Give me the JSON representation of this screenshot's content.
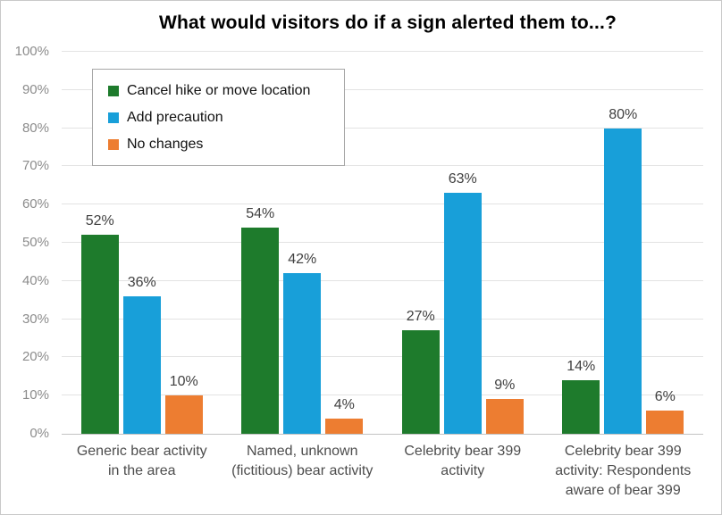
{
  "chart_data": {
    "type": "bar",
    "title": "What would visitors do if a sign alerted them to...?",
    "categories": [
      "Generic bear activity\nin the area",
      "Named, unknown\n(fictitious) bear activity",
      "Celebrity bear 399\nactivity",
      "Celebrity bear 399\nactivity: Respondents\naware of bear 399"
    ],
    "series": [
      {
        "name": "Cancel hike or move location",
        "color": "#1e7b2c",
        "values": [
          52,
          54,
          27,
          14
        ],
        "labels": [
          "52%",
          "54%",
          "27%",
          "14%"
        ]
      },
      {
        "name": "Add precaution",
        "color": "#189fd9",
        "values": [
          36,
          42,
          63,
          80
        ],
        "labels": [
          "36%",
          "42%",
          "63%",
          "80%"
        ]
      },
      {
        "name": "No changes",
        "color": "#ed7d31",
        "values": [
          10,
          4,
          9,
          6
        ],
        "labels": [
          "10%",
          "4%",
          "9%",
          "6%"
        ]
      }
    ],
    "ylim": [
      0,
      100
    ],
    "ytick_values": [
      0,
      10,
      20,
      30,
      40,
      50,
      60,
      70,
      80,
      90,
      100
    ],
    "ytick_labels": [
      "0%",
      "10%",
      "20%",
      "30%",
      "40%",
      "50%",
      "60%",
      "70%",
      "80%",
      "90%",
      "100%"
    ],
    "grid": true,
    "legend_position": "top-left-inside",
    "xlabel": "",
    "ylabel": ""
  }
}
